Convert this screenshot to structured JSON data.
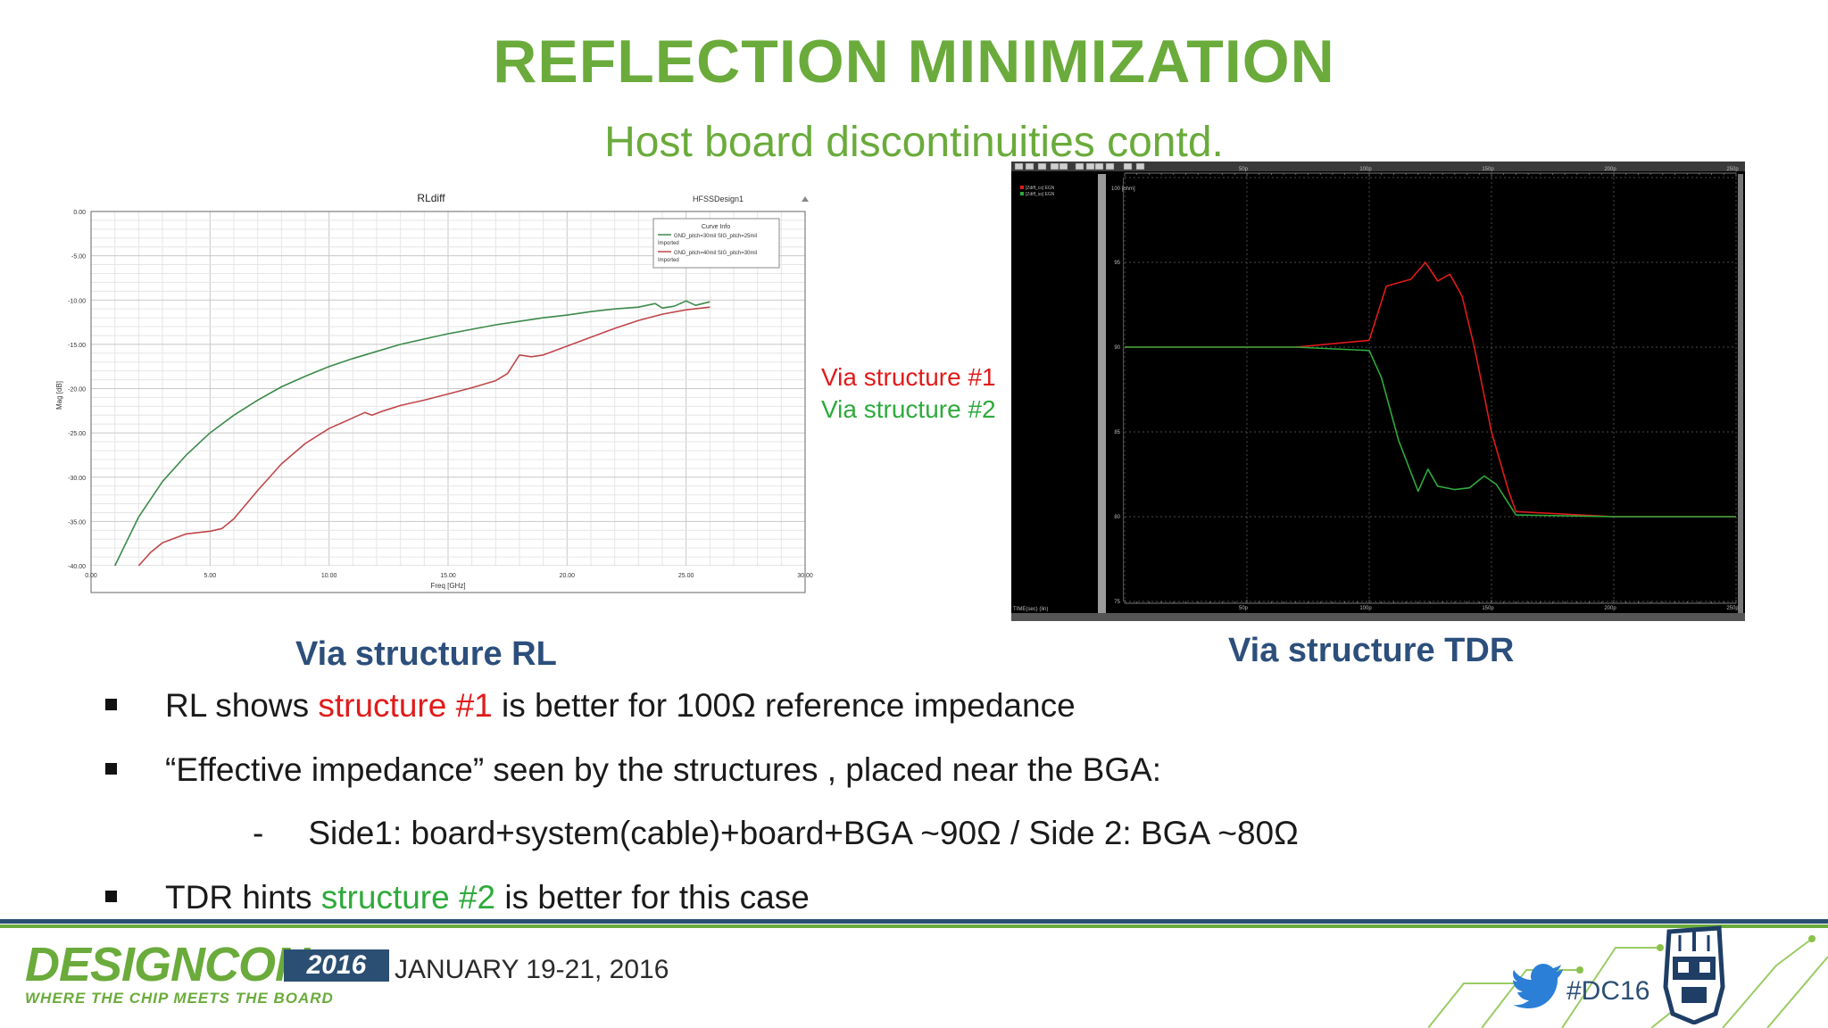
{
  "slide": {
    "title": "REFLECTION MINIMIZATION",
    "subtitle": "Host board discontinuities contd."
  },
  "rl_plot": {
    "caption": "Via structure RL",
    "chart_data": {
      "type": "line",
      "title": "RLdiff",
      "design_label": "HFSSDesign1",
      "xlabel": "Freq [GHz]",
      "ylabel": "Mag [dB]",
      "xlim": [
        0,
        30
      ],
      "ylim": [
        -40,
        0
      ],
      "x_ticks": [
        "0.00",
        "5.00",
        "10.00",
        "15.00",
        "20.00",
        "25.00",
        "30.00"
      ],
      "y_ticks": [
        "0.00",
        "-5.00",
        "-10.00",
        "-15.00",
        "-20.00",
        "-25.00",
        "-30.00",
        "-35.00",
        "-40.00"
      ],
      "grid": true,
      "legend_title": "Curve Info",
      "legend_position": "top-right",
      "series": [
        {
          "name": "GND_pitch=30mil  SIG_pitch=25mil  Imported",
          "color": "#3c8a4b",
          "points": [
            [
              1,
              -40
            ],
            [
              2,
              -34.5
            ],
            [
              3,
              -30.5
            ],
            [
              4,
              -27.5
            ],
            [
              5,
              -25
            ],
            [
              6,
              -23
            ],
            [
              7,
              -21.3
            ],
            [
              8,
              -19.8
            ],
            [
              9,
              -18.6
            ],
            [
              10,
              -17.5
            ],
            [
              11,
              -16.6
            ],
            [
              12,
              -15.8
            ],
            [
              13,
              -15
            ],
            [
              14,
              -14.4
            ],
            [
              15,
              -13.8
            ],
            [
              16,
              -13.3
            ],
            [
              17,
              -12.8
            ],
            [
              18,
              -12.4
            ],
            [
              19,
              -12
            ],
            [
              20,
              -11.7
            ],
            [
              21,
              -11.3
            ],
            [
              22,
              -11
            ],
            [
              23,
              -10.8
            ],
            [
              23.7,
              -10.4
            ],
            [
              24,
              -10.9
            ],
            [
              24.5,
              -10.7
            ],
            [
              25,
              -10.1
            ],
            [
              25.4,
              -10.6
            ],
            [
              26,
              -10.2
            ]
          ]
        },
        {
          "name": "GND_pitch=40mil  SIG_pitch=30mil  Imported",
          "color": "#c0464a",
          "points": [
            [
              2,
              -40
            ],
            [
              2.5,
              -38.5
            ],
            [
              3,
              -37.4
            ],
            [
              4,
              -36.4
            ],
            [
              5,
              -36.1
            ],
            [
              5.5,
              -35.8
            ],
            [
              6,
              -34.7
            ],
            [
              7,
              -31.5
            ],
            [
              8,
              -28.5
            ],
            [
              9,
              -26.2
            ],
            [
              10,
              -24.5
            ],
            [
              11,
              -23.3
            ],
            [
              11.5,
              -22.7
            ],
            [
              11.8,
              -23
            ],
            [
              12.3,
              -22.5
            ],
            [
              13,
              -21.9
            ],
            [
              14,
              -21.3
            ],
            [
              15,
              -20.6
            ],
            [
              16,
              -19.9
            ],
            [
              17,
              -19.1
            ],
            [
              17.5,
              -18.3
            ],
            [
              18,
              -16.2
            ],
            [
              18.5,
              -16.4
            ],
            [
              19,
              -16.2
            ],
            [
              20,
              -15.2
            ],
            [
              21,
              -14.2
            ],
            [
              22,
              -13.2
            ],
            [
              23,
              -12.3
            ],
            [
              24,
              -11.6
            ],
            [
              25,
              -11.1
            ],
            [
              26,
              -10.8
            ]
          ]
        }
      ]
    }
  },
  "tdr_plot": {
    "caption": "Via structure TDR",
    "legend": [
      {
        "label": "Via structure #1",
        "color": "#e11b1b"
      },
      {
        "label": "Via structure #2",
        "color": "#2eaa3c"
      }
    ],
    "inner_legend": [
      "[Zdiff_cs] EGN",
      "[Zdiff_ss] EGN"
    ],
    "unit_label": "100 [ohm]",
    "time_axis_label": "TIME(sec) (lin)",
    "chart_data": {
      "type": "line",
      "x_unit": "ps",
      "y_unit": "ohm",
      "xlim": [
        0,
        250
      ],
      "ylim": [
        75,
        100
      ],
      "x_ticks": [
        "50p",
        "100p",
        "150p",
        "200p",
        "250p"
      ],
      "y_ticks": [
        "95",
        "90",
        "85",
        "80",
        "75"
      ],
      "grid": true,
      "series": [
        {
          "name": "Via structure #1",
          "color": "#e11b1b",
          "points": [
            [
              0,
              90
            ],
            [
              70,
              90
            ],
            [
              100,
              90.4
            ],
            [
              107,
              93.6
            ],
            [
              117,
              94
            ],
            [
              123,
              95
            ],
            [
              128,
              93.9
            ],
            [
              133,
              94.3
            ],
            [
              138,
              93
            ],
            [
              143,
              90
            ],
            [
              150,
              85
            ],
            [
              157,
              81.5
            ],
            [
              160,
              80.3
            ],
            [
              200,
              80
            ],
            [
              250,
              80
            ]
          ]
        },
        {
          "name": "Via structure #2",
          "color": "#2eaa3c",
          "points": [
            [
              0,
              90
            ],
            [
              70,
              90
            ],
            [
              100,
              89.8
            ],
            [
              105,
              88.2
            ],
            [
              112,
              84.5
            ],
            [
              120,
              81.5
            ],
            [
              124,
              82.8
            ],
            [
              128,
              81.8
            ],
            [
              135,
              81.6
            ],
            [
              141,
              81.7
            ],
            [
              147,
              82.4
            ],
            [
              152,
              81.9
            ],
            [
              160,
              80.1
            ],
            [
              200,
              80
            ],
            [
              250,
              80
            ]
          ]
        }
      ]
    }
  },
  "bullets": [
    {
      "before": "RL shows ",
      "highlight": "structure #1",
      "after": " is better for 100Ω reference impedance"
    },
    {
      "before": "“Effective impedance” seen by the structures , placed near the BGA:",
      "highlight": "",
      "after": ""
    },
    {
      "dash": "-",
      "text": "Side1: board+system(cable)+board+BGA ~90Ω  /  Side 2: BGA ~80Ω"
    },
    {
      "before": "TDR hints ",
      "highlight": "structure #2",
      "after": " is better for this case"
    }
  ],
  "footer": {
    "brand": "DESIGNCON",
    "year": "2016",
    "tagline": "WHERE THE CHIP MEETS THE BOARD",
    "dates": "JANUARY 19-21, 2016",
    "hashtag": "#DC16",
    "icons": [
      "twitter-bird-icon",
      "robot-mascot-icon",
      "circuit-trace-pattern"
    ]
  },
  "colors": {
    "title_green": "#6aab3b",
    "caption_blue": "#2c4f7c",
    "red_highlight": "#e11b1b",
    "green_highlight": "#2eaa3c",
    "footer_navy": "#2b4f73"
  }
}
